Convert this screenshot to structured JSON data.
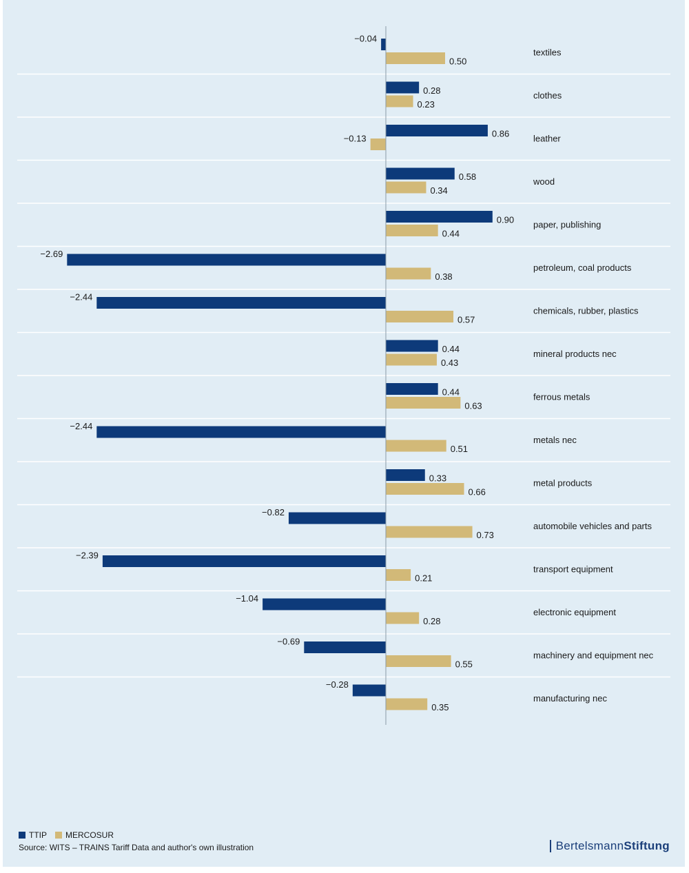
{
  "chart_data": {
    "type": "bar",
    "orientation": "horizontal",
    "categories": [
      "textiles",
      "clothes",
      "leather",
      "wood",
      "paper, publishing",
      "petroleum, coal products",
      "chemicals, rubber, plastics",
      "mineral products nec",
      "ferrous metals",
      "metals nec",
      "metal products",
      "automobile vehicles and parts",
      "transport equipment",
      "electronic equipment",
      "machinery and equipment nec",
      "manufacturing nec"
    ],
    "category_labels": [
      "textiles",
      "clothes",
      "leather",
      "wood",
      "paper, publishing",
      "petroleum, coal products",
      "chemicals, rubber, plastics",
      "mineral products nec",
      "ferrous metals",
      "metals nec",
      "metal products",
      "automobile vehicles and parts",
      "transport equipment",
      "electronic equipment",
      "machinery and equipment nec",
      "manufacturing nec"
    ],
    "series": [
      {
        "name": "TTIP",
        "color": "#0d3a7a",
        "values": [
          -0.04,
          0.28,
          0.86,
          0.58,
          0.9,
          -2.69,
          -2.44,
          0.44,
          0.44,
          -2.44,
          0.33,
          -0.82,
          -2.39,
          -1.04,
          -0.69,
          -0.28
        ],
        "labels": [
          "−0.04",
          "0.28",
          "0.86",
          "0.58",
          "0.90",
          "−2.69",
          "−2.44",
          "0.44",
          "0.44",
          "−2.44",
          "0.33",
          "−0.82",
          "−2.39",
          "−1.04",
          "−0.69",
          "−0.28"
        ]
      },
      {
        "name": "MERCOSUR",
        "color": "#d2b978",
        "values": [
          0.5,
          0.23,
          -0.13,
          0.34,
          0.44,
          0.38,
          0.57,
          0.43,
          0.63,
          0.51,
          0.66,
          0.73,
          0.21,
          0.28,
          0.55,
          0.35
        ],
        "labels": [
          "0.50",
          "0.23",
          "−0.13",
          "0.34",
          "0.44",
          "0.38",
          "0.57",
          "0.43",
          "0.63",
          "0.51",
          "0.66",
          "0.73",
          "0.21",
          "0.28",
          "0.55",
          "0.35"
        ]
      }
    ],
    "xlim": [
      -2.69,
      0.9
    ],
    "grid": "horizontal separators between categories",
    "legend": "bottom-left"
  },
  "legend": {
    "ttip": "TTIP",
    "mercosur": "MERCOSUR"
  },
  "source": "Source: WITS – TRAINS Tariff Data and author's own illustration",
  "brand": {
    "part1": "Bertelsmann",
    "part2": "Stiftung"
  }
}
